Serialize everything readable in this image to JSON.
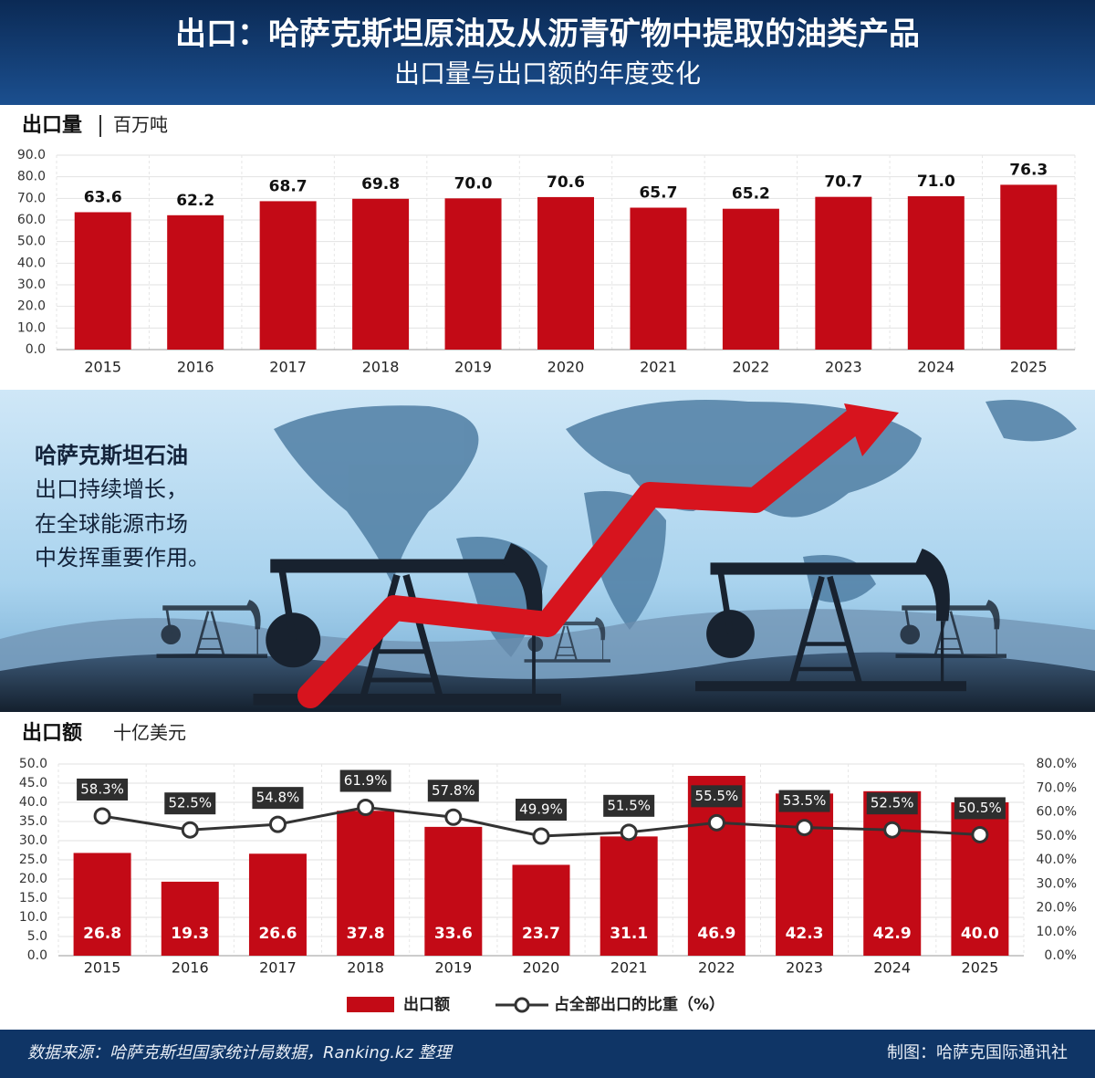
{
  "title": "出口：哈萨克斯坦原油及从沥青矿物中提取的油类产品",
  "subtitle": "出口量与出口额的年度变化",
  "banner_text": [
    "哈萨克斯坦石油",
    "出口持续增长，",
    "在全球能源市场",
    "中发挥重要作用。"
  ],
  "source": "数据来源：哈萨克斯坦国家统计局数据，Ranking.kz 整理",
  "credit": "制图：哈萨克国际通讯社",
  "chart_data": [
    {
      "type": "bar",
      "title": "出口量",
      "y_label": "百万吨",
      "categories": [
        "2015",
        "2016",
        "2017",
        "2018",
        "2019",
        "2020",
        "2021",
        "2022",
        "2023",
        "2024",
        "2025"
      ],
      "values": [
        63.6,
        62.2,
        68.7,
        69.8,
        70.0,
        70.6,
        65.7,
        65.2,
        70.7,
        71.0,
        76.3
      ],
      "value_labels": [
        "63.6",
        "62.2",
        "68.7",
        "69.8",
        "70.0",
        "70.6",
        "65.7",
        "65.2",
        "70.7",
        "71.0",
        "76.3"
      ],
      "color": "#c30a16",
      "ylim": [
        0,
        90
      ],
      "yticks": [
        {
          "value": 0,
          "label": "0.0"
        },
        {
          "value": 10,
          "label": "10.0"
        },
        {
          "value": 20,
          "label": "20.0"
        },
        {
          "value": 30,
          "label": "30.0"
        },
        {
          "value": 40,
          "label": "40.0"
        },
        {
          "value": 50,
          "label": "50.0"
        },
        {
          "value": 60,
          "label": "60.0"
        },
        {
          "value": 70,
          "label": "70.0"
        },
        {
          "value": 80,
          "label": "80.0"
        },
        {
          "value": 90,
          "label": "90.0"
        }
      ],
      "grid": true
    },
    {
      "type": "bar",
      "title": "出口额",
      "y_label": "十亿美元",
      "categories": [
        "2015",
        "2016",
        "2017",
        "2018",
        "2019",
        "2020",
        "2021",
        "2022",
        "2023",
        "2024",
        "2025"
      ],
      "series": [
        {
          "name": "出口额",
          "type": "bar",
          "color": "#c30a16",
          "values": [
            26.8,
            19.3,
            26.6,
            37.8,
            33.6,
            23.7,
            31.1,
            46.9,
            42.3,
            42.9,
            40.0
          ],
          "value_labels": [
            "26.8",
            "19.3",
            "26.6",
            "37.8",
            "33.6",
            "23.7",
            "31.1",
            "46.9",
            "42.3",
            "42.9",
            "40.0"
          ]
        },
        {
          "name": "占全部出口的比重（%）",
          "type": "line",
          "axis": "y2",
          "color": "#333333",
          "values": [
            58.3,
            52.5,
            54.8,
            61.9,
            57.8,
            49.9,
            51.5,
            55.5,
            53.5,
            52.5,
            50.5
          ],
          "value_labels": [
            "58.3%",
            "52.5%",
            "54.8%",
            "61.9%",
            "57.8%",
            "49.9%",
            "51.5%",
            "55.5%",
            "53.5%",
            "52.5%",
            "50.5%"
          ]
        }
      ],
      "ylim": [
        0,
        50
      ],
      "yticks": [
        {
          "value": 0,
          "label": "0.0"
        },
        {
          "value": 5,
          "label": "5.0"
        },
        {
          "value": 10,
          "label": "10.0"
        },
        {
          "value": 15,
          "label": "15.0"
        },
        {
          "value": 20,
          "label": "20.0"
        },
        {
          "value": 25,
          "label": "25.0"
        },
        {
          "value": 30,
          "label": "30.0"
        },
        {
          "value": 35,
          "label": "35.0"
        },
        {
          "value": 40,
          "label": "40.0"
        },
        {
          "value": 45,
          "label": "45.0"
        },
        {
          "value": 50,
          "label": "50.0"
        }
      ],
      "y2lim": [
        0,
        80
      ],
      "y2ticks": [
        {
          "value": 0,
          "label": "0.0%"
        },
        {
          "value": 10,
          "label": "10.0%"
        },
        {
          "value": 20,
          "label": "20.0%"
        },
        {
          "value": 30,
          "label": "30.0%"
        },
        {
          "value": 40,
          "label": "40.0%"
        },
        {
          "value": 50,
          "label": "50.0%"
        },
        {
          "value": 60,
          "label": "60.0%"
        },
        {
          "value": 70,
          "label": "70.0%"
        },
        {
          "value": 80,
          "label": "80.0%"
        }
      ],
      "grid": true
    }
  ]
}
